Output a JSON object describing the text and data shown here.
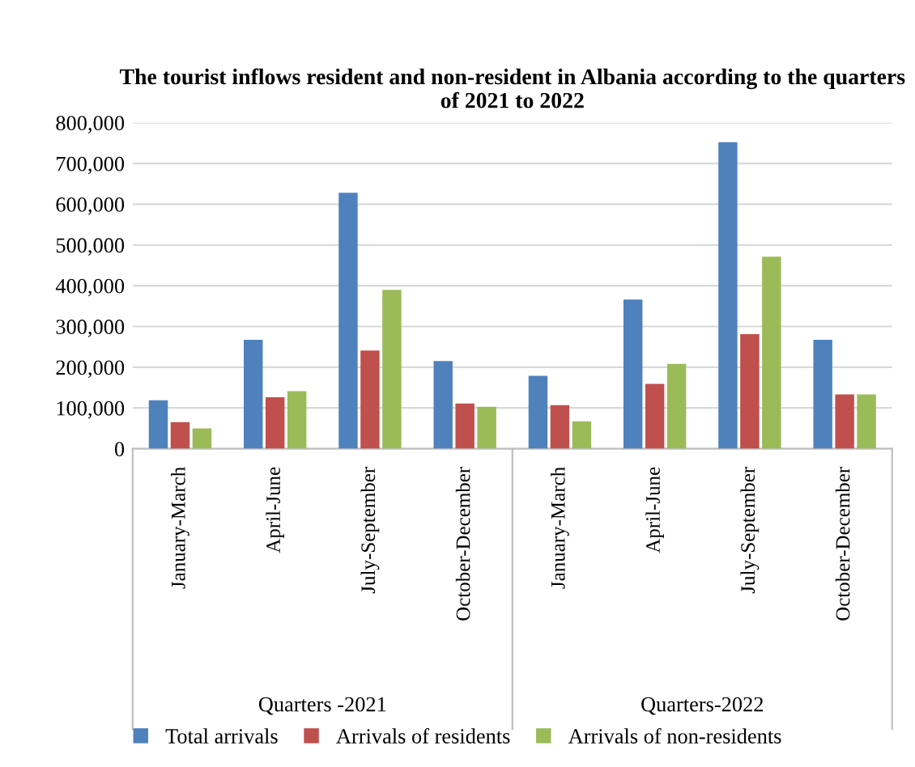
{
  "chart_data": {
    "type": "bar",
    "title": "The tourist inflows resident and non-resident in Albania according to the quarters of 2021 to 2022",
    "categories": [
      "January-March",
      "April-June",
      "July-September",
      "October-December",
      "January-March",
      "April-June",
      "July-September",
      "October-December"
    ],
    "series": [
      {
        "name": "Total arrivals",
        "color": "#4f81bd",
        "values": [
          119000,
          267000,
          628000,
          215000,
          179000,
          366000,
          752000,
          267000
        ]
      },
      {
        "name": "Arrivals of residents",
        "color": "#c0504d",
        "values": [
          65000,
          126000,
          241000,
          111000,
          107000,
          159000,
          281000,
          133000
        ]
      },
      {
        "name": "Arrivals of non-residents",
        "color": "#9bbb59",
        "values": [
          50000,
          141000,
          390000,
          103000,
          67000,
          208000,
          471000,
          133000
        ]
      }
    ],
    "annotations": [
      "Quarters -2021",
      "Quarters-2022"
    ],
    "ylim": [
      0,
      800000
    ],
    "yticks": [
      0,
      {
        "value": 100000,
        "label": "100,000"
      },
      {
        "value": 200000,
        "label": "200,000"
      },
      {
        "value": 300000,
        "label": "300,000"
      },
      {
        "value": 400000,
        "label": "400,000"
      },
      {
        "value": 500000,
        "label": "500,000"
      },
      {
        "value": 600000,
        "label": "600,000"
      },
      {
        "value": 700000,
        "label": "700,000"
      },
      {
        "value": 800000,
        "label": "800,000"
      }
    ],
    "grid": "y",
    "legend": "bottom"
  }
}
